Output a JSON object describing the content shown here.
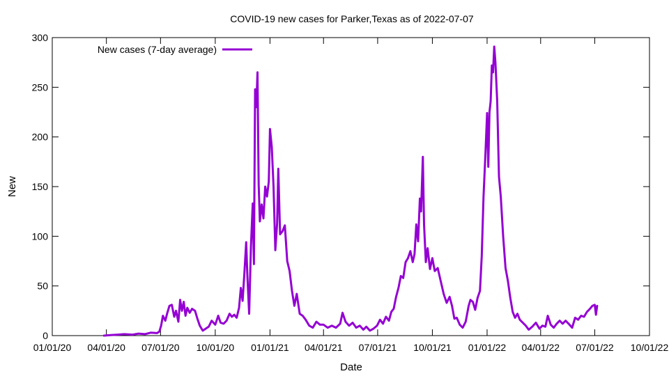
{
  "chart_data": {
    "type": "line",
    "title": "COVID-19 new cases for Parker,Texas as of 2022-07-07",
    "xlabel": "Date",
    "ylabel": "New",
    "xlim": [
      "2020-01-01",
      "2022-10-01"
    ],
    "ylim": [
      0,
      300
    ],
    "x_ticks": [
      "01/01/20",
      "04/01/20",
      "07/01/20",
      "10/01/20",
      "01/01/21",
      "04/01/21",
      "07/01/21",
      "10/01/21",
      "01/01/22",
      "04/01/22",
      "07/01/22",
      "10/01/22"
    ],
    "x_tick_dates": [
      "2020-01-01",
      "2020-04-01",
      "2020-07-01",
      "2020-10-01",
      "2021-01-01",
      "2021-04-01",
      "2021-07-01",
      "2021-10-01",
      "2022-01-01",
      "2022-04-01",
      "2022-07-01",
      "2022-10-01"
    ],
    "y_ticks": [
      "0",
      "50",
      "100",
      "150",
      "200",
      "250",
      "300"
    ],
    "grid": false,
    "legend": {
      "position": "top-left"
    },
    "colors": {
      "series": "#9400d3",
      "axis": "#000000"
    },
    "series": [
      {
        "name": "New cases (7-day average)",
        "points": [
          [
            "2020-03-28",
            0
          ],
          [
            "2020-04-08",
            0.5
          ],
          [
            "2020-04-20",
            1
          ],
          [
            "2020-05-01",
            1.5
          ],
          [
            "2020-05-15",
            1
          ],
          [
            "2020-05-25",
            2
          ],
          [
            "2020-06-05",
            1.5
          ],
          [
            "2020-06-15",
            3
          ],
          [
            "2020-06-25",
            2.5
          ],
          [
            "2020-06-29",
            4
          ],
          [
            "2020-07-02",
            10
          ],
          [
            "2020-07-05",
            20
          ],
          [
            "2020-07-09",
            15
          ],
          [
            "2020-07-12",
            22
          ],
          [
            "2020-07-16",
            30
          ],
          [
            "2020-07-20",
            31
          ],
          [
            "2020-07-24",
            19
          ],
          [
            "2020-07-27",
            25
          ],
          [
            "2020-07-31",
            14
          ],
          [
            "2020-08-03",
            36
          ],
          [
            "2020-08-06",
            25
          ],
          [
            "2020-08-09",
            34
          ],
          [
            "2020-08-12",
            20
          ],
          [
            "2020-08-15",
            28
          ],
          [
            "2020-08-19",
            23
          ],
          [
            "2020-08-23",
            27
          ],
          [
            "2020-08-28",
            25
          ],
          [
            "2020-09-01",
            17
          ],
          [
            "2020-09-05",
            10
          ],
          [
            "2020-09-10",
            5
          ],
          [
            "2020-09-15",
            7
          ],
          [
            "2020-09-20",
            9
          ],
          [
            "2020-09-25",
            15
          ],
          [
            "2020-10-01",
            11
          ],
          [
            "2020-10-06",
            20
          ],
          [
            "2020-10-10",
            13
          ],
          [
            "2020-10-15",
            12
          ],
          [
            "2020-10-20",
            15
          ],
          [
            "2020-10-25",
            22
          ],
          [
            "2020-10-29",
            19
          ],
          [
            "2020-11-02",
            21
          ],
          [
            "2020-11-06",
            18
          ],
          [
            "2020-11-10",
            28
          ],
          [
            "2020-11-13",
            48
          ],
          [
            "2020-11-16",
            35
          ],
          [
            "2020-11-19",
            63
          ],
          [
            "2020-11-22",
            94
          ],
          [
            "2020-11-24",
            60
          ],
          [
            "2020-11-27",
            22
          ],
          [
            "2020-11-30",
            90
          ],
          [
            "2020-12-03",
            133
          ],
          [
            "2020-12-05",
            72
          ],
          [
            "2020-12-07",
            248
          ],
          [
            "2020-12-09",
            230
          ],
          [
            "2020-12-11",
            265
          ],
          [
            "2020-12-13",
            152
          ],
          [
            "2020-12-15",
            115
          ],
          [
            "2020-12-18",
            132
          ],
          [
            "2020-12-21",
            118
          ],
          [
            "2020-12-24",
            150
          ],
          [
            "2020-12-27",
            140
          ],
          [
            "2020-12-30",
            155
          ],
          [
            "2021-01-01",
            208
          ],
          [
            "2021-01-04",
            190
          ],
          [
            "2021-01-07",
            150
          ],
          [
            "2021-01-10",
            86
          ],
          [
            "2021-01-13",
            113
          ],
          [
            "2021-01-15",
            168
          ],
          [
            "2021-01-18",
            102
          ],
          [
            "2021-01-22",
            105
          ],
          [
            "2021-01-26",
            111
          ],
          [
            "2021-01-30",
            75
          ],
          [
            "2021-02-03",
            65
          ],
          [
            "2021-02-07",
            45
          ],
          [
            "2021-02-11",
            30
          ],
          [
            "2021-02-15",
            42
          ],
          [
            "2021-02-20",
            22
          ],
          [
            "2021-02-25",
            20
          ],
          [
            "2021-03-02",
            16
          ],
          [
            "2021-03-08",
            10
          ],
          [
            "2021-03-14",
            8
          ],
          [
            "2021-03-20",
            14
          ],
          [
            "2021-03-26",
            11
          ],
          [
            "2021-04-01",
            11
          ],
          [
            "2021-04-08",
            8
          ],
          [
            "2021-04-15",
            10
          ],
          [
            "2021-04-22",
            8
          ],
          [
            "2021-04-29",
            12
          ],
          [
            "2021-05-03",
            23
          ],
          [
            "2021-05-08",
            14
          ],
          [
            "2021-05-14",
            10
          ],
          [
            "2021-05-20",
            13
          ],
          [
            "2021-05-26",
            8
          ],
          [
            "2021-06-01",
            10
          ],
          [
            "2021-06-07",
            6
          ],
          [
            "2021-06-12",
            9
          ],
          [
            "2021-06-18",
            5
          ],
          [
            "2021-06-24",
            7
          ],
          [
            "2021-06-30",
            10
          ],
          [
            "2021-07-05",
            16
          ],
          [
            "2021-07-10",
            12
          ],
          [
            "2021-07-15",
            19
          ],
          [
            "2021-07-20",
            15
          ],
          [
            "2021-07-24",
            24
          ],
          [
            "2021-07-28",
            27
          ],
          [
            "2021-08-01",
            39
          ],
          [
            "2021-08-05",
            48
          ],
          [
            "2021-08-09",
            60
          ],
          [
            "2021-08-13",
            58
          ],
          [
            "2021-08-17",
            74
          ],
          [
            "2021-08-21",
            78
          ],
          [
            "2021-08-25",
            85
          ],
          [
            "2021-08-29",
            74
          ],
          [
            "2021-09-01",
            82
          ],
          [
            "2021-09-04",
            112
          ],
          [
            "2021-09-07",
            95
          ],
          [
            "2021-09-10",
            138
          ],
          [
            "2021-09-12",
            125
          ],
          [
            "2021-09-15",
            180
          ],
          [
            "2021-09-17",
            112
          ],
          [
            "2021-09-20",
            74
          ],
          [
            "2021-09-23",
            88
          ],
          [
            "2021-09-27",
            67
          ],
          [
            "2021-10-01",
            78
          ],
          [
            "2021-10-05",
            65
          ],
          [
            "2021-10-10",
            68
          ],
          [
            "2021-10-15",
            55
          ],
          [
            "2021-10-20",
            42
          ],
          [
            "2021-10-25",
            33
          ],
          [
            "2021-10-30",
            39
          ],
          [
            "2021-11-03",
            30
          ],
          [
            "2021-11-07",
            17
          ],
          [
            "2021-11-11",
            18
          ],
          [
            "2021-11-16",
            11
          ],
          [
            "2021-11-21",
            8
          ],
          [
            "2021-11-26",
            14
          ],
          [
            "2021-12-01",
            30
          ],
          [
            "2021-12-04",
            36
          ],
          [
            "2021-12-08",
            34
          ],
          [
            "2021-12-12",
            26
          ],
          [
            "2021-12-16",
            38
          ],
          [
            "2021-12-20",
            45
          ],
          [
            "2021-12-23",
            80
          ],
          [
            "2021-12-26",
            140
          ],
          [
            "2021-12-29",
            180
          ],
          [
            "2022-01-01",
            224
          ],
          [
            "2022-01-03",
            170
          ],
          [
            "2022-01-05",
            225
          ],
          [
            "2022-01-07",
            236
          ],
          [
            "2022-01-09",
            272
          ],
          [
            "2022-01-11",
            265
          ],
          [
            "2022-01-13",
            291
          ],
          [
            "2022-01-15",
            275
          ],
          [
            "2022-01-18",
            236
          ],
          [
            "2022-01-21",
            160
          ],
          [
            "2022-01-24",
            140
          ],
          [
            "2022-01-28",
            100
          ],
          [
            "2022-02-01",
            68
          ],
          [
            "2022-02-05",
            55
          ],
          [
            "2022-02-09",
            38
          ],
          [
            "2022-02-13",
            24
          ],
          [
            "2022-02-17",
            18
          ],
          [
            "2022-02-21",
            22
          ],
          [
            "2022-02-25",
            16
          ],
          [
            "2022-03-02",
            13
          ],
          [
            "2022-03-07",
            10
          ],
          [
            "2022-03-12",
            6
          ],
          [
            "2022-03-18",
            9
          ],
          [
            "2022-03-24",
            13
          ],
          [
            "2022-03-30",
            7
          ],
          [
            "2022-04-04",
            10
          ],
          [
            "2022-04-09",
            9
          ],
          [
            "2022-04-13",
            20
          ],
          [
            "2022-04-18",
            11
          ],
          [
            "2022-04-23",
            8
          ],
          [
            "2022-04-28",
            12
          ],
          [
            "2022-05-03",
            15
          ],
          [
            "2022-05-08",
            12
          ],
          [
            "2022-05-13",
            15
          ],
          [
            "2022-05-18",
            12
          ],
          [
            "2022-05-24",
            8
          ],
          [
            "2022-05-29",
            18
          ],
          [
            "2022-06-03",
            16
          ],
          [
            "2022-06-08",
            20
          ],
          [
            "2022-06-13",
            19
          ],
          [
            "2022-06-18",
            24
          ],
          [
            "2022-06-23",
            27
          ],
          [
            "2022-06-27",
            30
          ],
          [
            "2022-07-01",
            31
          ],
          [
            "2022-07-03",
            21
          ],
          [
            "2022-07-05",
            30
          ]
        ]
      }
    ]
  }
}
